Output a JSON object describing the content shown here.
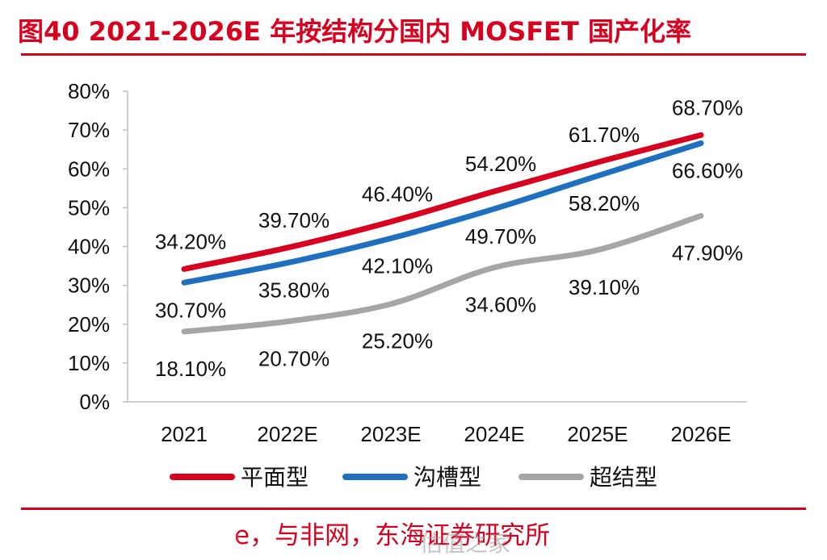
{
  "title": "图40  2021-2026E 年按结构分国内 MOSFET 国产化率",
  "source": "e，与非网，东海证券研究所",
  "watermark": "估值之家",
  "chart_data": {
    "type": "line",
    "title": "图40  2021-2026E 年按结构分国内 MOSFET 国产化率",
    "xlabel": "",
    "ylabel": "",
    "categories": [
      "2021",
      "2022E",
      "2023E",
      "2024E",
      "2025E",
      "2026E"
    ],
    "ylim": [
      0,
      80
    ],
    "yticks": [
      0,
      10,
      20,
      30,
      40,
      50,
      60,
      70,
      80
    ],
    "y_unit": "%",
    "legend_position": "bottom",
    "series": [
      {
        "name": "平面型",
        "color": "#d7001f",
        "values": [
          34.2,
          39.7,
          46.4,
          54.2,
          61.7,
          68.7
        ],
        "labels": [
          "34.20%",
          "39.70%",
          "46.40%",
          "54.20%",
          "61.70%",
          "68.70%"
        ]
      },
      {
        "name": "沟槽型",
        "color": "#1f6fc0",
        "values": [
          30.7,
          35.8,
          42.1,
          49.7,
          58.2,
          66.6
        ],
        "labels": [
          "30.70%",
          "35.80%",
          "42.10%",
          "49.70%",
          "58.20%",
          "66.60%"
        ]
      },
      {
        "name": "超结型",
        "color": "#a6a6a6",
        "values": [
          18.1,
          20.7,
          25.2,
          34.6,
          39.1,
          47.9
        ],
        "labels": [
          "18.10%",
          "20.70%",
          "25.20%",
          "34.60%",
          "39.10%",
          "47.90%"
        ]
      }
    ]
  }
}
